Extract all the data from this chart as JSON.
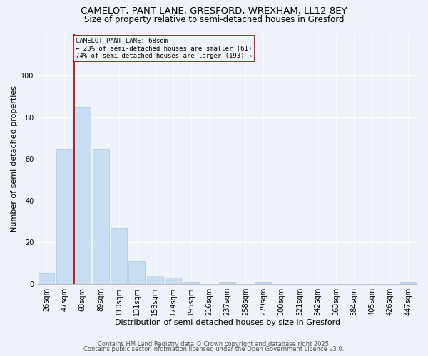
{
  "title1": "CAMELOT, PANT LANE, GRESFORD, WREXHAM, LL12 8EY",
  "title2": "Size of property relative to semi-detached houses in Gresford",
  "xlabel": "Distribution of semi-detached houses by size in Gresford",
  "ylabel": "Number of semi-detached properties",
  "categories": [
    "26sqm",
    "47sqm",
    "68sqm",
    "89sqm",
    "110sqm",
    "131sqm",
    "153sqm",
    "174sqm",
    "195sqm",
    "216sqm",
    "237sqm",
    "258sqm",
    "279sqm",
    "300sqm",
    "321sqm",
    "342sqm",
    "363sqm",
    "384sqm",
    "405sqm",
    "426sqm",
    "447sqm"
  ],
  "values": [
    5,
    65,
    85,
    65,
    27,
    11,
    4,
    3,
    1,
    0,
    1,
    0,
    1,
    0,
    0,
    0,
    0,
    0,
    0,
    0,
    1
  ],
  "bar_color": "#c9ddf2",
  "bar_edge_color": "#aac4e0",
  "highlight_index": 2,
  "highlight_line_color": "#aa0000",
  "annotation_title": "CAMELOT PANT LANE: 68sqm",
  "annotation_line1": "← 23% of semi-detached houses are smaller (61)",
  "annotation_line2": "74% of semi-detached houses are larger (193) →",
  "annotation_box_color": "#aa0000",
  "ylim": [
    0,
    120
  ],
  "yticks": [
    0,
    20,
    40,
    60,
    80,
    100
  ],
  "footnote1": "Contains HM Land Registry data © Crown copyright and database right 2025.",
  "footnote2": "Contains public sector information licensed under the Open Government Licence v3.0.",
  "background_color": "#eef2f9",
  "grid_color": "#ffffff",
  "title1_fontsize": 9.5,
  "title2_fontsize": 8.5,
  "axis_label_fontsize": 8,
  "tick_fontsize": 7,
  "footnote_fontsize": 6
}
